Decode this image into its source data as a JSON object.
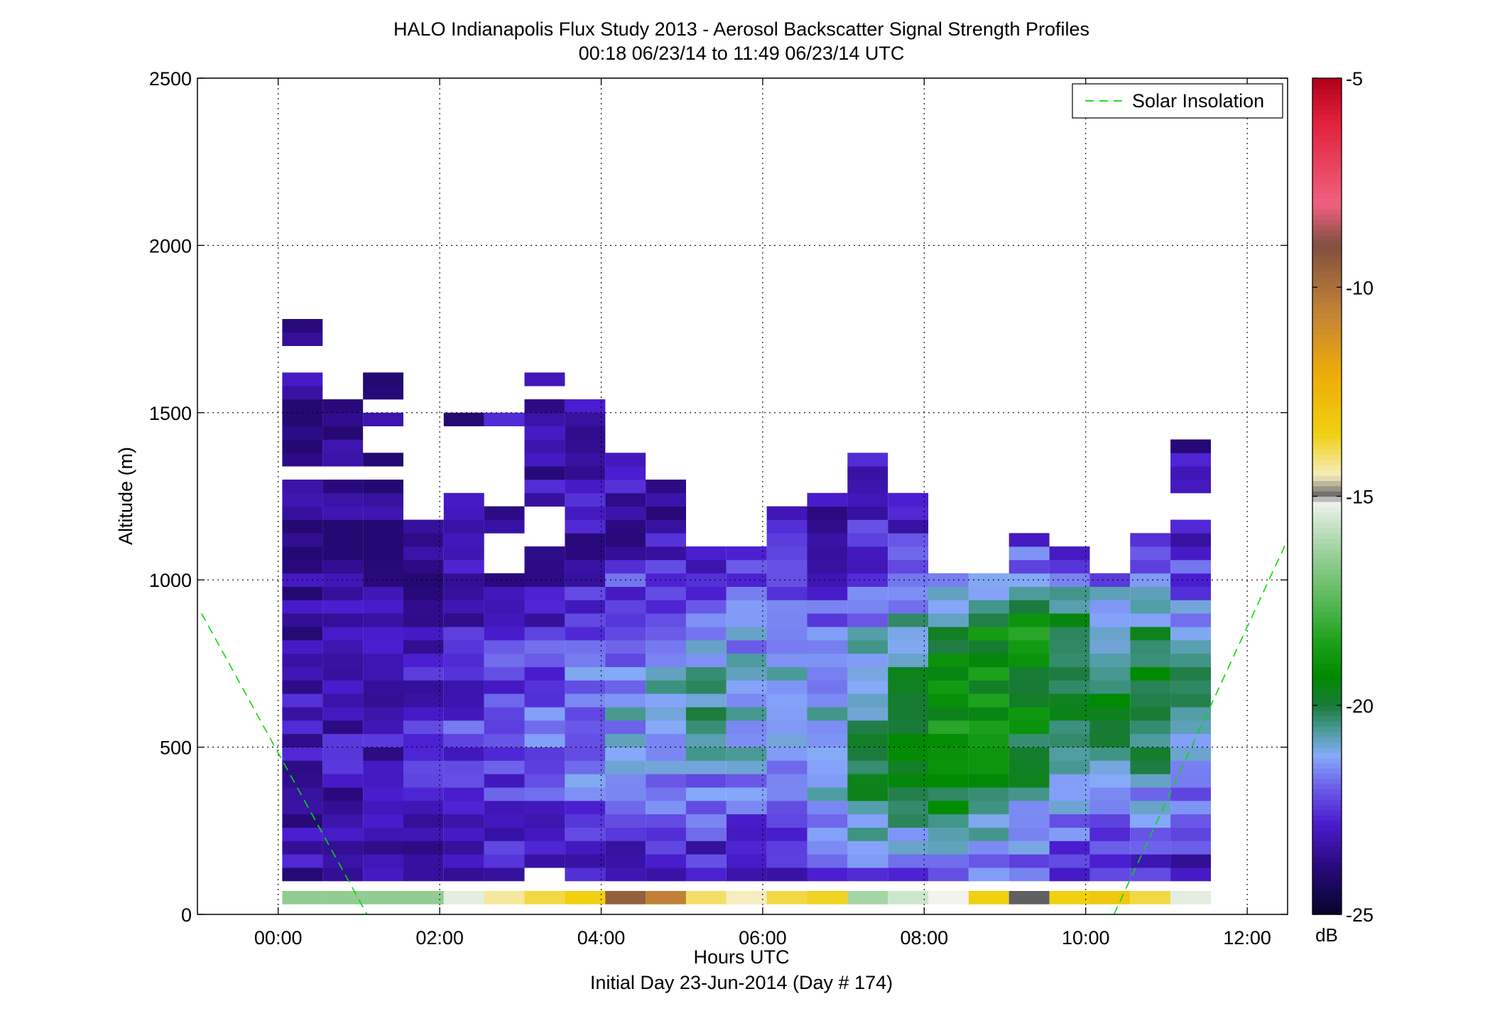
{
  "chart_data": {
    "type": "heatmap",
    "title": "HALO Indianapolis Flux Study 2013 - Aerosol Backscatter Signal Strength Profiles",
    "subtitle": "00:18 06/23/14 to 11:49 06/23/14  UTC",
    "xlabel": "Hours UTC",
    "xlabel2": "Initial Day 23-Jun-2014 (Day # 174)",
    "ylabel": "Altitude (m)",
    "xlim": [
      -1,
      12.5
    ],
    "ylim": [
      0,
      2500
    ],
    "xticks": [
      0,
      2,
      4,
      6,
      8,
      10,
      12
    ],
    "xtick_labels": [
      "00:00",
      "02:00",
      "04:00",
      "06:00",
      "08:00",
      "10:00",
      "12:00"
    ],
    "yticks": [
      0,
      500,
      1000,
      1500,
      2000,
      2500
    ],
    "ytick_labels": [
      "0",
      "500",
      "1000",
      "1500",
      "2000",
      "2500"
    ],
    "grid": true,
    "legend": {
      "position": "top-right",
      "entries": [
        {
          "label": "Solar Insolation",
          "color": "#00dd00",
          "style": "dashed"
        }
      ]
    },
    "colorbar": {
      "min": -25,
      "max": -5,
      "unit": "dB",
      "ticks": [
        -5,
        -10,
        -15,
        -20,
        -25
      ],
      "tick_labels": [
        "-5",
        "-10",
        "-15",
        "-20",
        "-25"
      ],
      "colormap": [
        [
          -25,
          "#05052a"
        ],
        [
          -23.8,
          "#2a0a80"
        ],
        [
          -22.8,
          "#4a1dd0"
        ],
        [
          -22,
          "#6a5ae8"
        ],
        [
          -21.2,
          "#86aafa"
        ],
        [
          -20.6,
          "#4c9c9c"
        ],
        [
          -20,
          "#1a7a3a"
        ],
        [
          -19.3,
          "#008a00"
        ],
        [
          -18.5,
          "#1aa01a"
        ],
        [
          -17.5,
          "#58b858"
        ],
        [
          -16.5,
          "#92cc92"
        ],
        [
          -15.6,
          "#cce6cc"
        ],
        [
          -15.1,
          "#f2f2ee"
        ],
        [
          -15,
          "#606060"
        ],
        [
          -14.5,
          "#f6edbe"
        ],
        [
          -13.5,
          "#f0d010"
        ],
        [
          -12,
          "#ecaa0a"
        ],
        [
          -10.5,
          "#c08038"
        ],
        [
          -9,
          "#805040"
        ],
        [
          -8,
          "#f06080"
        ],
        [
          -6,
          "#e0203a"
        ],
        [
          -5,
          "#b00018"
        ]
      ]
    },
    "time_bins": [
      0.3,
      0.8,
      1.3,
      1.8,
      2.3,
      2.8,
      3.3,
      3.8,
      4.3,
      4.8,
      5.3,
      5.8,
      6.3,
      6.8,
      7.3,
      7.8,
      8.3,
      8.8,
      9.3,
      9.8,
      10.3,
      10.8,
      11.3
    ],
    "profiles": [
      {
        "time": 0.3,
        "top": 1760,
        "gaps": [
          [
            1640,
            1690
          ],
          [
            1300,
            1320
          ],
          [
            1090,
            1110
          ]
        ],
        "surface": -16.5
      },
      {
        "time": 0.8,
        "top": 1530,
        "gaps": [
          [
            1300,
            1320
          ],
          [
            1090,
            1110
          ],
          [
            80,
            100
          ]
        ],
        "surface": -16.5
      },
      {
        "time": 1.3,
        "top": 1610,
        "gaps": [
          [
            1500,
            1520
          ],
          [
            1430,
            1460
          ],
          [
            1380,
            1400
          ],
          [
            1300,
            1320
          ],
          [
            80,
            100
          ]
        ],
        "surface": -16.5
      },
      {
        "time": 1.8,
        "top": 1150,
        "gaps": [
          [
            80,
            100
          ]
        ],
        "surface": -16.5
      },
      {
        "time": 2.3,
        "top": 1500,
        "gaps": [
          [
            1270,
            1470
          ]
        ],
        "surface": -15.3
      },
      {
        "time": 2.8,
        "top": 1500,
        "gaps": [
          [
            1230,
            1470
          ],
          [
            1040,
            1150
          ]
        ],
        "surface": -14.3
      },
      {
        "time": 3.3,
        "top": 1610,
        "gaps": [
          [
            1540,
            1580
          ],
          [
            1120,
            1220
          ],
          [
            80,
            130
          ]
        ],
        "surface": -13.8
      },
      {
        "time": 3.8,
        "top": 1530,
        "gaps": [],
        "surface": -13.5
      },
      {
        "time": 4.3,
        "top": 1370,
        "gaps": [],
        "surface": -9.5
      },
      {
        "time": 4.8,
        "top": 1300,
        "gaps": [],
        "surface": -10.5
      },
      {
        "time": 5.3,
        "top": 1080,
        "gaps": [],
        "surface": -14
      },
      {
        "time": 5.8,
        "top": 1080,
        "gaps": [],
        "surface": -14.5
      },
      {
        "time": 6.3,
        "top": 1190,
        "gaps": [],
        "surface": -13.8
      },
      {
        "time": 6.8,
        "top": 1230,
        "gaps": [],
        "surface": -13.6
      },
      {
        "time": 7.3,
        "top": 1380,
        "gaps": [],
        "surface": -16.2
      },
      {
        "time": 7.8,
        "top": 1230,
        "gaps": [],
        "surface": -15.6
      },
      {
        "time": 8.3,
        "top": 1000,
        "gaps": [],
        "surface": -15.1
      },
      {
        "time": 8.8,
        "top": 1000,
        "gaps": [],
        "surface": -13.5
      },
      {
        "time": 9.3,
        "top": 1110,
        "gaps": [],
        "surface": -15
      },
      {
        "time": 9.8,
        "top": 1080,
        "gaps": [],
        "surface": -13.5
      },
      {
        "time": 10.3,
        "top": 1000,
        "gaps": [],
        "surface": -13.2
      },
      {
        "time": 10.8,
        "top": 1110,
        "gaps": [],
        "surface": -13.8
      },
      {
        "time": 11.3,
        "top": 1420,
        "gaps": [
          [
            1180,
            1270
          ]
        ],
        "surface": -15.3
      }
    ],
    "solar_insolation": [
      {
        "x": -0.95,
        "y": 900
      },
      {
        "x": 1.1,
        "y": 0
      },
      {
        "x": 10.35,
        "y": 0
      },
      {
        "x": 12.5,
        "y": 1120
      }
    ]
  }
}
